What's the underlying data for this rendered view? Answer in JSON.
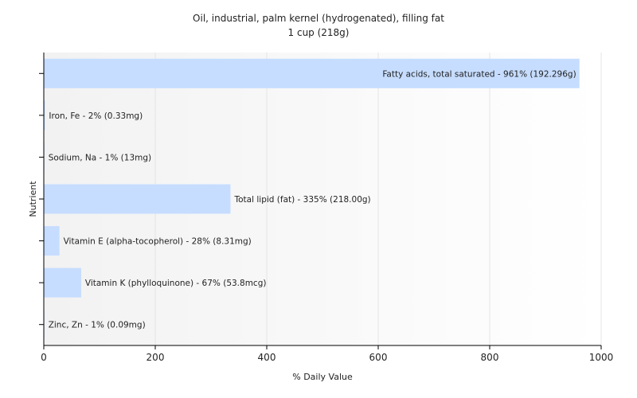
{
  "chart_data": {
    "type": "bar",
    "orientation": "horizontal",
    "title": "Oil, industrial, palm kernel (hydrogenated), filling fat",
    "subtitle": "1 cup (218g)",
    "xlabel": "% Daily Value",
    "ylabel": "Nutrient",
    "xlim": [
      0,
      1000
    ],
    "xticks": [
      "0",
      "200",
      "400",
      "600",
      "800",
      "1000"
    ],
    "grid": true,
    "legend": "none",
    "bar_color": "#c6ddff",
    "bars": [
      {
        "label": "Fatty acids, total saturated - 961% (192.296g)",
        "value": 961
      },
      {
        "label": "Iron, Fe - 2% (0.33mg)",
        "value": 2
      },
      {
        "label": "Sodium, Na - 1% (13mg)",
        "value": 1
      },
      {
        "label": "Total lipid (fat) - 335% (218.00g)",
        "value": 335
      },
      {
        "label": "Vitamin E (alpha-tocopherol) - 28% (8.31mg)",
        "value": 28
      },
      {
        "label": "Vitamin K (phylloquinone) - 67% (53.8mcg)",
        "value": 67
      },
      {
        "label": "Zinc, Zn - 1% (0.09mg)",
        "value": 1
      }
    ]
  }
}
